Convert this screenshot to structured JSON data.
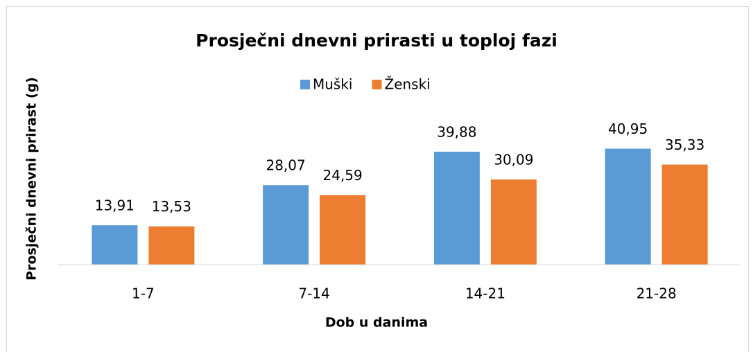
{
  "chart_data": {
    "type": "bar",
    "title": "Prosječni dnevni prirasti u toploj fazi",
    "x_label": "Dob u danima",
    "y_label": "Prosječni dnevni prirast (g)",
    "categories": [
      "1-7",
      "7-14",
      "14-21",
      "21-28"
    ],
    "series": [
      {
        "name": "Muški",
        "color": "#5b9bd5",
        "values": [
          13.91,
          28.07,
          39.88,
          40.95
        ],
        "value_labels": [
          "13,91",
          "28,07",
          "39,88",
          "40,95"
        ]
      },
      {
        "name": "Ženski",
        "color": "#ed7d31",
        "values": [
          13.53,
          24.59,
          30.09,
          35.33
        ],
        "value_labels": [
          "13,53",
          "24,59",
          "30,09",
          "35,33"
        ]
      }
    ],
    "ylim": [
      0,
      45
    ],
    "legend": "top"
  }
}
